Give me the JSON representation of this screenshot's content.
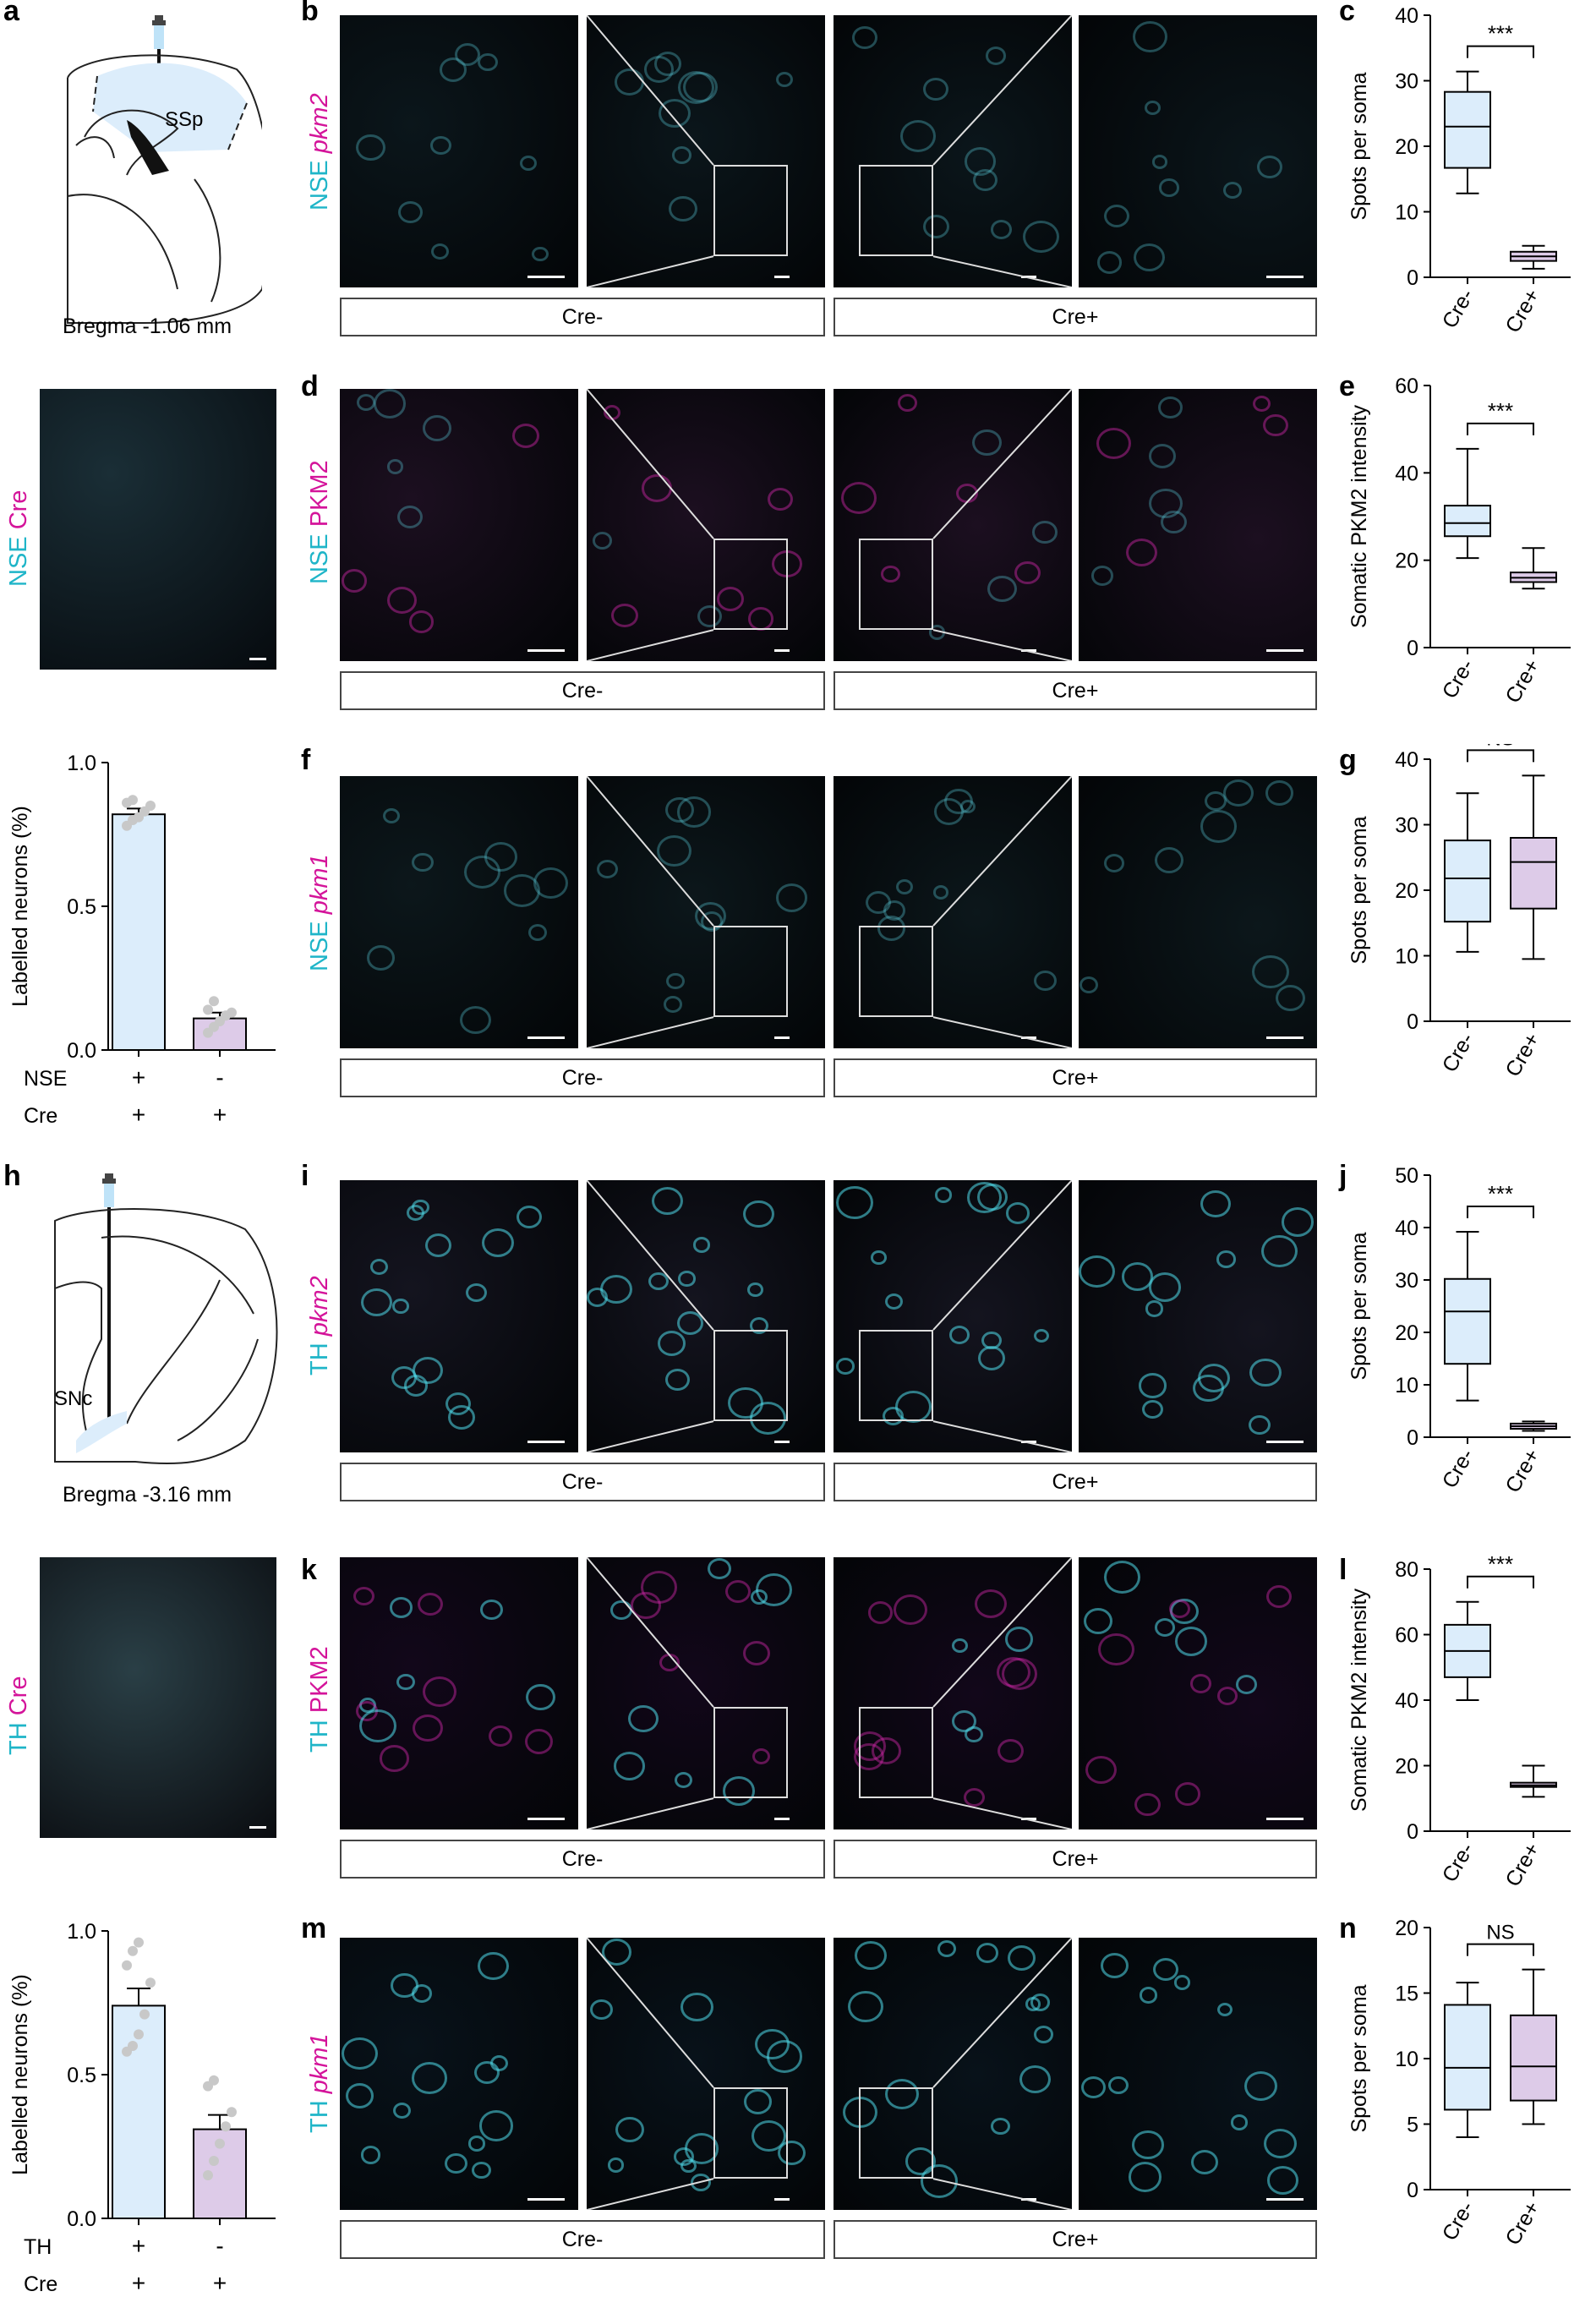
{
  "panel_letters": [
    "a",
    "b",
    "c",
    "d",
    "e",
    "f",
    "g",
    "h",
    "i",
    "j",
    "k",
    "l",
    "m",
    "n"
  ],
  "schematics": {
    "a": {
      "region": "SSp",
      "bregma": "Bregma -1.06 mm"
    },
    "h": {
      "region": "SNc",
      "bregma": "Bregma -3.16 mm"
    }
  },
  "overview_panels": {
    "top": {
      "markers": [
        "NSE",
        "Cre"
      ]
    },
    "bottom": {
      "markers": [
        "TH",
        "Cre"
      ]
    }
  },
  "micro_rows": [
    {
      "letter": "b",
      "markers": [
        "NSE",
        "pkm2"
      ],
      "left": "Cre-",
      "right": "Cre+"
    },
    {
      "letter": "d",
      "markers": [
        "NSE",
        "PKM2"
      ],
      "left": "Cre-",
      "right": "Cre+"
    },
    {
      "letter": "f",
      "markers": [
        "NSE",
        "pkm1"
      ],
      "left": "Cre-",
      "right": "Cre+"
    },
    {
      "letter": "i",
      "markers": [
        "TH",
        "pkm2"
      ],
      "left": "Cre-",
      "right": "Cre+"
    },
    {
      "letter": "k",
      "markers": [
        "TH",
        "PKM2"
      ],
      "left": "Cre-",
      "right": "Cre+"
    },
    {
      "letter": "m",
      "markers": [
        "TH",
        "pkm1"
      ],
      "left": "Cre-",
      "right": "Cre+"
    }
  ],
  "colors": {
    "cre_minus": "#dcedfb",
    "cre_plus": "#ddcbe8",
    "cyan": "#1fb5c8",
    "magenta": "#d4149a",
    "dots": "#c8c8c8"
  },
  "chart_data": [
    {
      "id": "bar_a",
      "type": "bar",
      "ylabel": "Labelled neurons (%)",
      "ylim": [
        0,
        1.0
      ],
      "yticks": [
        0.0,
        0.5,
        1.0
      ],
      "row_labels": [
        {
          "name": "NSE",
          "values": [
            "+",
            "-"
          ]
        },
        {
          "name": "Cre",
          "values": [
            "+",
            "+"
          ]
        }
      ],
      "values": [
        0.82,
        0.11
      ],
      "errors": [
        0.02,
        0.02
      ],
      "points": [
        [
          0.78,
          0.8,
          0.81,
          0.83,
          0.85,
          0.86,
          0.87
        ],
        [
          0.06,
          0.08,
          0.1,
          0.12,
          0.13,
          0.14,
          0.17
        ]
      ]
    },
    {
      "id": "c",
      "type": "box",
      "ylabel": "Spots per soma",
      "ylim": [
        0,
        40
      ],
      "yticks": [
        0,
        10,
        20,
        30,
        40
      ],
      "categories": [
        "Cre-",
        "Cre+"
      ],
      "significance": "***",
      "boxes": [
        {
          "min": 12.8,
          "q1": 16.7,
          "median": 23.0,
          "q3": 28.3,
          "max": 31.4
        },
        {
          "min": 1.3,
          "q1": 2.5,
          "median": 3.2,
          "q3": 3.9,
          "max": 4.8
        }
      ]
    },
    {
      "id": "e",
      "type": "box",
      "ylabel": "Somatic PKM2 intensity",
      "ylim": [
        0,
        60
      ],
      "yticks": [
        0,
        20,
        40,
        60
      ],
      "categories": [
        "Cre-",
        "Cre+"
      ],
      "significance": "***",
      "boxes": [
        {
          "min": 20.5,
          "q1": 25.5,
          "median": 28.5,
          "q3": 32.5,
          "max": 45.5
        },
        {
          "min": 13.5,
          "q1": 15.0,
          "median": 16.0,
          "q3": 17.2,
          "max": 22.8
        }
      ]
    },
    {
      "id": "g",
      "type": "box",
      "ylabel": "Spots per soma",
      "ylim": [
        0,
        40
      ],
      "yticks": [
        0,
        10,
        20,
        30,
        40
      ],
      "categories": [
        "Cre-",
        "Cre+"
      ],
      "significance": "NS",
      "boxes": [
        {
          "min": 10.6,
          "q1": 15.2,
          "median": 21.8,
          "q3": 27.6,
          "max": 34.8
        },
        {
          "min": 9.5,
          "q1": 17.2,
          "median": 24.3,
          "q3": 28.0,
          "max": 37.5
        }
      ]
    },
    {
      "id": "bar_h",
      "type": "bar",
      "ylabel": "Labelled neurons (%)",
      "ylim": [
        0,
        1.0
      ],
      "yticks": [
        0.0,
        0.5,
        1.0
      ],
      "row_labels": [
        {
          "name": "TH",
          "values": [
            "+",
            "-"
          ]
        },
        {
          "name": "Cre",
          "values": [
            "+",
            "+"
          ]
        }
      ],
      "values": [
        0.74,
        0.31
      ],
      "errors": [
        0.06,
        0.05
      ],
      "points": [
        [
          0.58,
          0.6,
          0.64,
          0.71,
          0.82,
          0.88,
          0.93,
          0.96
        ],
        [
          0.15,
          0.2,
          0.26,
          0.32,
          0.37,
          0.46,
          0.48
        ]
      ]
    },
    {
      "id": "j",
      "type": "box",
      "ylabel": "Spots per soma",
      "ylim": [
        0,
        50
      ],
      "yticks": [
        0,
        10,
        20,
        30,
        40,
        50
      ],
      "categories": [
        "Cre-",
        "Cre+"
      ],
      "significance": "***",
      "boxes": [
        {
          "min": 7.0,
          "q1": 14.0,
          "median": 24.0,
          "q3": 30.2,
          "max": 39.2
        },
        {
          "min": 1.2,
          "q1": 1.6,
          "median": 2.1,
          "q3": 2.6,
          "max": 3.0
        }
      ]
    },
    {
      "id": "l",
      "type": "box",
      "ylabel": "Somatic PKM2 intensity",
      "ylim": [
        0,
        80
      ],
      "yticks": [
        0,
        20,
        40,
        60,
        80
      ],
      "categories": [
        "Cre-",
        "Cre+"
      ],
      "significance": "***",
      "boxes": [
        {
          "min": 40.0,
          "q1": 47.0,
          "median": 55.0,
          "q3": 63.0,
          "max": 70.0
        },
        {
          "min": 10.5,
          "q1": 13.5,
          "median": 14.0,
          "q3": 14.8,
          "max": 20.0
        }
      ]
    },
    {
      "id": "n",
      "type": "box",
      "ylabel": "Spots per soma",
      "ylim": [
        0,
        20
      ],
      "yticks": [
        0,
        5,
        10,
        15,
        20
      ],
      "categories": [
        "Cre-",
        "Cre+"
      ],
      "significance": "NS",
      "boxes": [
        {
          "min": 4.0,
          "q1": 6.1,
          "median": 9.3,
          "q3": 14.1,
          "max": 15.8
        },
        {
          "min": 5.0,
          "q1": 6.8,
          "median": 9.4,
          "q3": 13.3,
          "max": 16.8
        }
      ]
    }
  ]
}
